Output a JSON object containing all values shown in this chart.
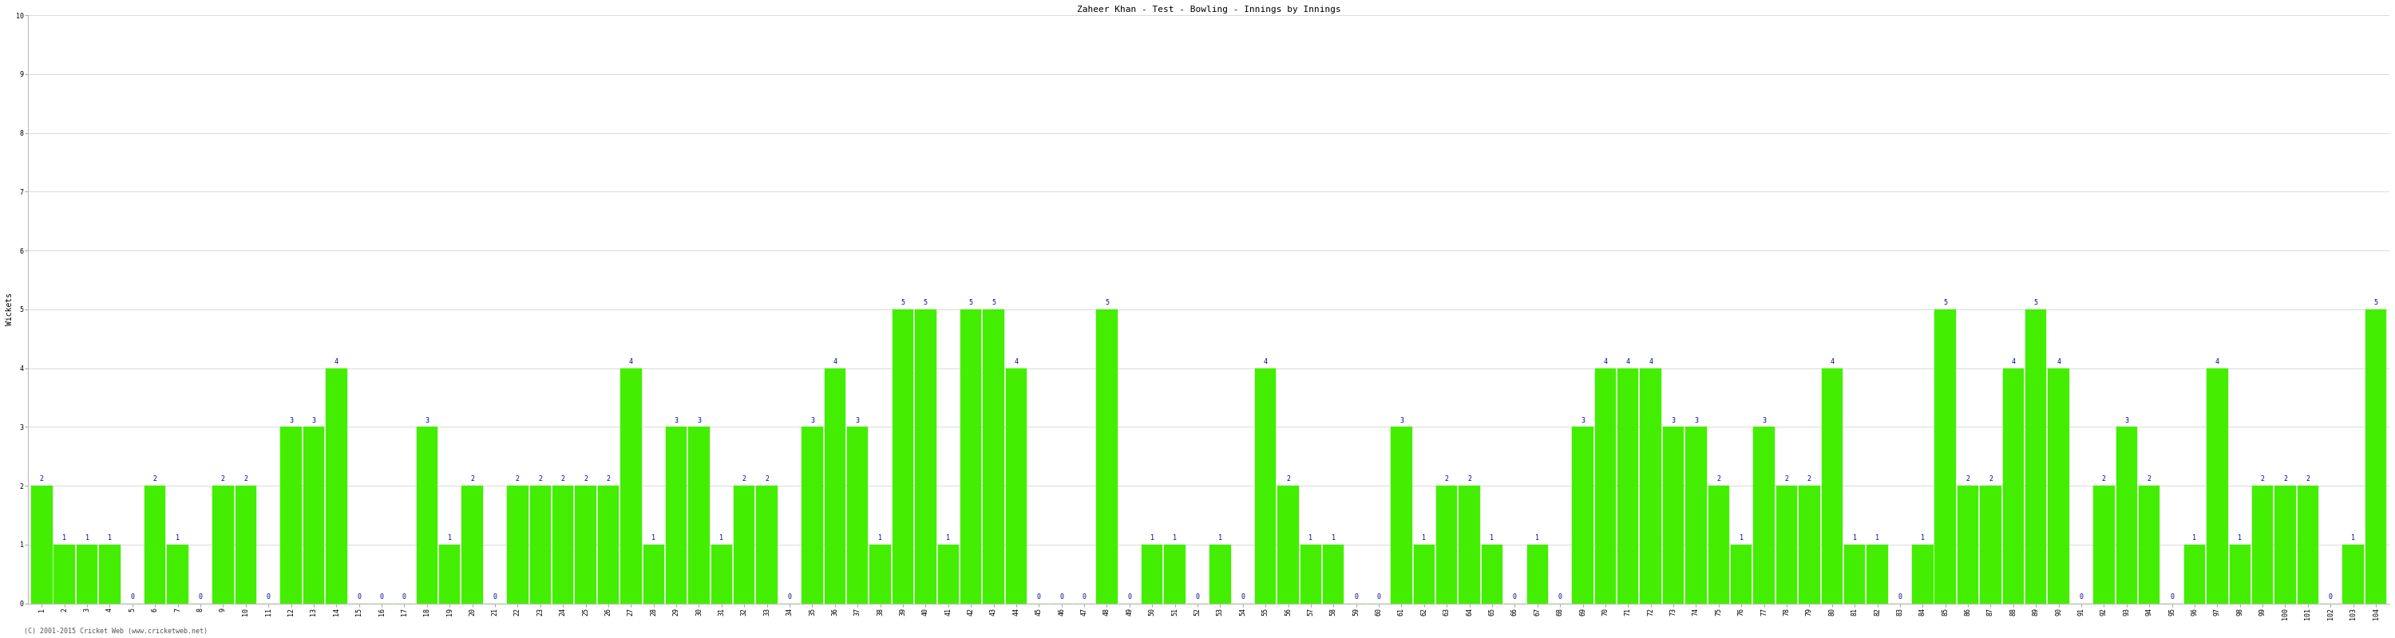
{
  "title": "Zaheer Khan - Test - Bowling - Innings by Innings",
  "ylabel": "Wickets",
  "background_color": "#ffffff",
  "bar_color": "#44ee00",
  "label_color": "#0000aa",
  "grid_color": "#cccccc",
  "innings": [
    1,
    2,
    3,
    4,
    5,
    6,
    7,
    8,
    9,
    10,
    11,
    12,
    13,
    14,
    15,
    16,
    17,
    18,
    19,
    20,
    21,
    22,
    23,
    24,
    25,
    26,
    27,
    28,
    29,
    30,
    31,
    32,
    33,
    34,
    35,
    36,
    37,
    38,
    39,
    40,
    41,
    42,
    43,
    44,
    45,
    46,
    47,
    48,
    49,
    50,
    51,
    52,
    53,
    54,
    55,
    56,
    57,
    58,
    59,
    60,
    61,
    62,
    63,
    64,
    65,
    66,
    67,
    68,
    69,
    70,
    71,
    72,
    73,
    74,
    75,
    76,
    77,
    78,
    79,
    80,
    81,
    82,
    83,
    84,
    85,
    86,
    87,
    88,
    89,
    90,
    91,
    92,
    93,
    94,
    95,
    96,
    97,
    98,
    99,
    100,
    101,
    102,
    103,
    104
  ],
  "wickets": [
    2,
    1,
    1,
    1,
    0,
    2,
    1,
    0,
    2,
    2,
    0,
    3,
    3,
    4,
    0,
    0,
    0,
    3,
    1,
    2,
    0,
    2,
    2,
    2,
    2,
    2,
    4,
    1,
    3,
    3,
    1,
    2,
    2,
    0,
    3,
    4,
    3,
    1,
    5,
    5,
    1,
    5,
    5,
    4,
    0,
    0,
    0,
    5,
    0,
    1,
    1,
    0,
    1,
    0,
    4,
    2,
    1,
    1,
    0,
    0,
    3,
    1,
    2,
    2,
    1,
    0,
    1,
    0,
    3,
    4,
    4,
    4,
    3,
    3,
    2,
    1,
    3,
    2,
    2,
    4,
    1,
    1,
    0,
    1,
    5,
    2,
    2,
    4,
    5,
    4,
    0,
    2,
    3,
    2,
    0,
    1,
    4,
    1,
    2,
    2,
    2,
    0,
    1,
    5
  ],
  "ylim": [
    0,
    10
  ],
  "yticks": [
    0,
    1,
    2,
    3,
    4,
    5,
    6,
    7,
    8,
    9,
    10
  ],
  "title_fontsize": 8,
  "label_fontsize": 7,
  "tick_fontsize": 6,
  "bar_label_fontsize": 6,
  "copyright": "(C) 2001-2015 Cricket Web (www.cricketweb.net)"
}
